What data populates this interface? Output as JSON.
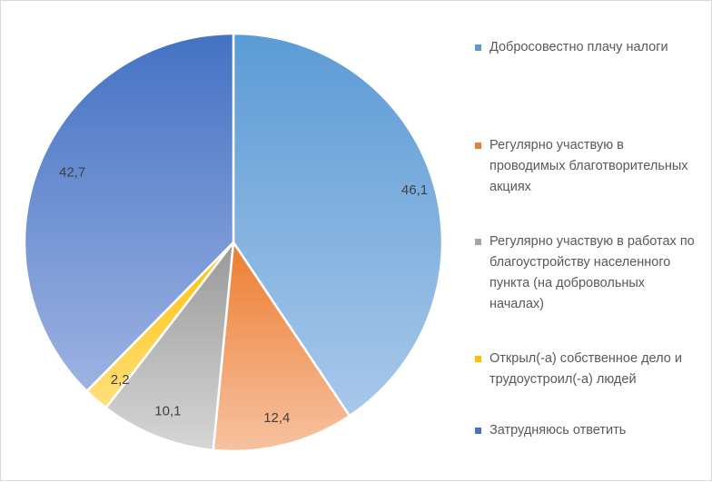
{
  "chart_data": {
    "type": "pie",
    "title": "",
    "start_angle_deg": 0,
    "direction": "clockwise",
    "legend_position": "right",
    "slices": [
      {
        "name": "Добросовестно плачу налоги",
        "value": 46.1,
        "label": "46,1",
        "color_top": "#5b9bd5",
        "color_bottom": "#a9c8ea"
      },
      {
        "name": "Регулярно участвую в проводимых благотворительных акциях",
        "value": 12.4,
        "label": "12,4",
        "color_top": "#ed7d31",
        "color_bottom": "#f7c2a0"
      },
      {
        "name": "Регулярно участвую в работах по благоустройству населенного пункта (на добровольных началах)",
        "value": 10.1,
        "label": "10,1",
        "color_top": "#999999",
        "color_bottom": "#d6d6d6"
      },
      {
        "name": "Открыл(-а) собственное дело и трудоустроил(-а) людей",
        "value": 2.2,
        "label": "2,2",
        "color_top": "#ffc000",
        "color_bottom": "#ffe07f"
      },
      {
        "name": "Затрудняюсь ответить",
        "value": 42.7,
        "label": "42,7",
        "color_top": "#4472c4",
        "color_bottom": "#9db3e2"
      }
    ]
  },
  "legend": {
    "items": [
      {
        "label": "Добросовестно плачу налоги",
        "color": "#5b9bd5"
      },
      {
        "label": "Регулярно участвую в проводимых благотворительных акциях",
        "color": "#ed7d31"
      },
      {
        "label": "Регулярно участвую в работах по благоустройству населенного пункта (на добровольных началах)",
        "color": "#a5a5a5"
      },
      {
        "label": "Открыл(-а) собственное дело и трудоустроил(-а) людей",
        "color": "#ffc000"
      },
      {
        "label": "Затрудняюсь ответить",
        "color": "#4472c4"
      }
    ]
  }
}
